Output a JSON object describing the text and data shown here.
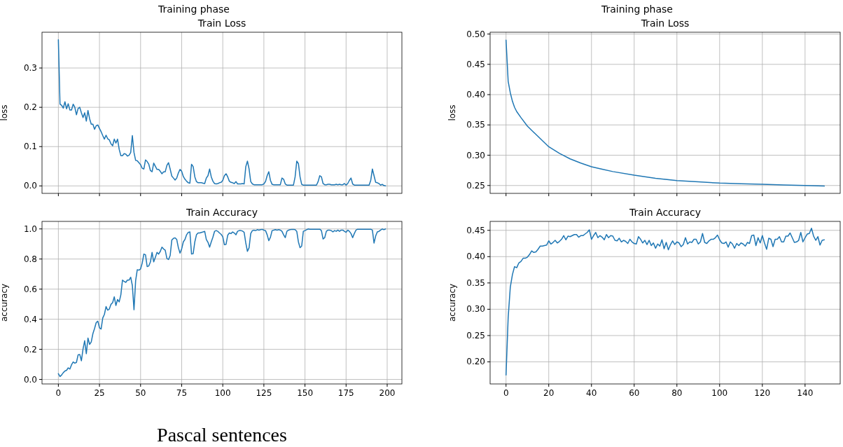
{
  "chart_data": [
    {
      "type": "line",
      "title": "Training phase",
      "subtitle": "Train Loss",
      "ylabel": "loss",
      "xlim": [
        -9.95,
        208.95
      ],
      "xticks": [
        0,
        25,
        50,
        75,
        100,
        125,
        150,
        175,
        200
      ],
      "ylim": [
        -0.019,
        0.391
      ],
      "yticks": [
        {
          "value": 0,
          "label": "0.0"
        },
        0.1,
        0.2,
        0.3
      ],
      "grid": true,
      "tick_labels": "y",
      "series": [
        {
          "color": "#1f77b4",
          "x": [
            0,
            1,
            2,
            3,
            4,
            5,
            6,
            7,
            8,
            9,
            10,
            11,
            12,
            13,
            14,
            15,
            16,
            17,
            18,
            19,
            20,
            21,
            22,
            23,
            24,
            25,
            26,
            27,
            28,
            29,
            30,
            31,
            32,
            33,
            34,
            35,
            36,
            37,
            38,
            39,
            40,
            41,
            42,
            43,
            44,
            45,
            46,
            47,
            48,
            49,
            50,
            51,
            52,
            53,
            54,
            55,
            56,
            57,
            58,
            59,
            60,
            61,
            62,
            63,
            64,
            65,
            66,
            67,
            68,
            69,
            70,
            71,
            72,
            73,
            74,
            75,
            76,
            77,
            78,
            79,
            80,
            81,
            82,
            83,
            84,
            85,
            86,
            87,
            88,
            89,
            90,
            91,
            92,
            93,
            94,
            95,
            96,
            97,
            98,
            99,
            100,
            101,
            102,
            103,
            104,
            105,
            106,
            107,
            108,
            109,
            110,
            111,
            112,
            113,
            114,
            115,
            116,
            117,
            118,
            119,
            120,
            121,
            122,
            123,
            124,
            125,
            126,
            127,
            128,
            129,
            130,
            131,
            132,
            133,
            134,
            135,
            136,
            137,
            138,
            139,
            140,
            141,
            142,
            143,
            144,
            145,
            146,
            147,
            148,
            149,
            150,
            151,
            152,
            153,
            154,
            155,
            156,
            157,
            158,
            159,
            160,
            161,
            162,
            163,
            164,
            165,
            166,
            167,
            168,
            169,
            170,
            171,
            172,
            173,
            174,
            175,
            176,
            177,
            178,
            179,
            180,
            181,
            182,
            183,
            184,
            185,
            186,
            187,
            188,
            189,
            190,
            191,
            192,
            193,
            194,
            195,
            196,
            197,
            198,
            199
          ],
          "values": [
            0.372,
            0.208,
            0.205,
            0.198,
            0.214,
            0.196,
            0.209,
            0.193,
            0.193,
            0.208,
            0.2,
            0.181,
            0.197,
            0.2,
            0.186,
            0.174,
            0.186,
            0.165,
            0.192,
            0.171,
            0.157,
            0.157,
            0.144,
            0.153,
            0.155,
            0.146,
            0.138,
            0.128,
            0.119,
            0.129,
            0.12,
            0.117,
            0.107,
            0.102,
            0.119,
            0.109,
            0.119,
            0.093,
            0.077,
            0.077,
            0.082,
            0.081,
            0.076,
            0.078,
            0.085,
            0.128,
            0.085,
            0.065,
            0.064,
            0.059,
            0.054,
            0.045,
            0.043,
            0.066,
            0.062,
            0.055,
            0.039,
            0.036,
            0.058,
            0.05,
            0.042,
            0.042,
            0.037,
            0.031,
            0.036,
            0.036,
            0.052,
            0.059,
            0.043,
            0.025,
            0.02,
            0.015,
            0.02,
            0.033,
            0.042,
            0.037,
            0.024,
            0.017,
            0.012,
            0.008,
            0.007,
            0.055,
            0.049,
            0.023,
            0.011,
            0.008,
            0.008,
            0.008,
            0.007,
            0.006,
            0.02,
            0.026,
            0.043,
            0.023,
            0.012,
            0.006,
            0.005,
            0.006,
            0.008,
            0.009,
            0.014,
            0.026,
            0.031,
            0.023,
            0.012,
            0.009,
            0.008,
            0.006,
            0.011,
            0.005,
            0.005,
            0.005,
            0.006,
            0.005,
            0.049,
            0.063,
            0.043,
            0.011,
            0.005,
            0.003,
            0.003,
            0.003,
            0.003,
            0.003,
            0.003,
            0.005,
            0.011,
            0.026,
            0.036,
            0.014,
            0.004,
            0.003,
            0.003,
            0.003,
            0.003,
            0.003,
            0.02,
            0.017,
            0.005,
            0.002,
            0.002,
            0.002,
            0.002,
            0.002,
            0.023,
            0.063,
            0.057,
            0.023,
            0.004,
            0.002,
            0.002,
            0.002,
            0.002,
            0.002,
            0.002,
            0.002,
            0.002,
            0.002,
            0.011,
            0.026,
            0.023,
            0.006,
            0.003,
            0.003,
            0.004,
            0.004,
            0.003,
            0.003,
            0.003,
            0.004,
            0.003,
            0.004,
            0.003,
            0.003,
            0.006,
            0.002,
            0.006,
            0.014,
            0.02,
            0.005,
            0.002,
            0.002,
            0.002,
            0.002,
            0.002,
            0.002,
            0.002,
            0.002,
            0.002,
            0.002,
            0.014,
            0.043,
            0.026,
            0.009,
            0.008,
            0.006,
            0.002,
            0.004,
            0.001,
            0
          ]
        }
      ]
    },
    {
      "type": "line",
      "title": "Training phase",
      "subtitle": "Train Loss",
      "ylabel": "loss",
      "xlim": [
        -7.45,
        156.45
      ],
      "xticks": [
        0,
        20,
        40,
        60,
        80,
        100,
        120,
        140
      ],
      "ylim": [
        0.237,
        0.503
      ],
      "yticks": [
        {
          "value": 0.25,
          "label": "0.25"
        },
        {
          "value": 0.3,
          "label": "0.30"
        },
        {
          "value": 0.35,
          "label": "0.35"
        },
        {
          "value": 0.4,
          "label": "0.40"
        },
        {
          "value": 0.45,
          "label": "0.45"
        },
        {
          "value": 0.5,
          "label": "0.50"
        }
      ],
      "grid": true,
      "tick_labels": "y",
      "series": [
        {
          "color": "#1f77b4",
          "x": [
            0,
            1,
            2,
            3,
            4,
            5,
            7,
            10,
            12,
            15,
            20,
            25,
            30,
            35,
            40,
            45,
            50,
            60,
            70,
            80,
            90,
            100,
            110,
            120,
            130,
            140,
            149
          ],
          "values": [
            0.49,
            0.422,
            0.403,
            0.389,
            0.379,
            0.372,
            0.362,
            0.348,
            0.341,
            0.331,
            0.314,
            0.303,
            0.294,
            0.287,
            0.281,
            0.277,
            0.273,
            0.267,
            0.262,
            0.258,
            0.256,
            0.254,
            0.253,
            0.252,
            0.251,
            0.25,
            0.249
          ]
        }
      ]
    },
    {
      "type": "line",
      "title": "Train Accuracy",
      "ylabel": "accuracy",
      "xlim": [
        -9.95,
        208.95
      ],
      "xticks": [
        0,
        25,
        50,
        75,
        100,
        125,
        150,
        175,
        200
      ],
      "ylim": [
        -0.03,
        1.05
      ],
      "yticks": [
        {
          "value": 0,
          "label": "0.0"
        },
        0.2,
        0.4,
        0.6,
        0.8,
        {
          "value": 1,
          "label": "1.0"
        }
      ],
      "grid": true,
      "annotations": [
        "Pascal sentences"
      ],
      "series": [
        {
          "color": "#1f77b4",
          "x": [
            0,
            1,
            2,
            3,
            4,
            5,
            6,
            7,
            8,
            9,
            10,
            11,
            12,
            13,
            14,
            15,
            16,
            17,
            18,
            19,
            20,
            21,
            22,
            23,
            24,
            25,
            26,
            27,
            28,
            29,
            30,
            31,
            32,
            33,
            34,
            35,
            36,
            37,
            38,
            39,
            40,
            41,
            42,
            43,
            44,
            45,
            46,
            47,
            48,
            49,
            50,
            51,
            52,
            53,
            54,
            55,
            56,
            57,
            58,
            59,
            60,
            61,
            62,
            63,
            64,
            65,
            66,
            67,
            68,
            69,
            70,
            71,
            72,
            73,
            74,
            75,
            76,
            77,
            78,
            79,
            80,
            81,
            82,
            83,
            84,
            85,
            86,
            87,
            88,
            89,
            90,
            91,
            92,
            93,
            94,
            95,
            96,
            97,
            98,
            99,
            100,
            101,
            102,
            103,
            104,
            105,
            106,
            107,
            108,
            109,
            110,
            111,
            112,
            113,
            114,
            115,
            116,
            117,
            118,
            119,
            120,
            121,
            122,
            123,
            124,
            125,
            126,
            127,
            128,
            129,
            130,
            131,
            132,
            133,
            134,
            135,
            136,
            137,
            138,
            139,
            140,
            141,
            142,
            143,
            144,
            145,
            146,
            147,
            148,
            149,
            150,
            151,
            152,
            153,
            154,
            155,
            156,
            157,
            158,
            159,
            160,
            161,
            162,
            163,
            164,
            165,
            166,
            167,
            168,
            169,
            170,
            171,
            172,
            173,
            174,
            175,
            176,
            177,
            178,
            179,
            180,
            181,
            182,
            183,
            184,
            185,
            186,
            187,
            188,
            189,
            190,
            191,
            192,
            193,
            194,
            195,
            196,
            197,
            198,
            199
          ],
          "values": [
            0.038,
            0.019,
            0.03,
            0.045,
            0.056,
            0.061,
            0.077,
            0.069,
            0.097,
            0.116,
            0.108,
            0.113,
            0.163,
            0.166,
            0.124,
            0.202,
            0.257,
            0.171,
            0.275,
            0.233,
            0.249,
            0.304,
            0.338,
            0.377,
            0.387,
            0.343,
            0.335,
            0.408,
            0.432,
            0.484,
            0.46,
            0.468,
            0.499,
            0.51,
            0.549,
            0.491,
            0.531,
            0.515,
            0.562,
            0.66,
            0.651,
            0.645,
            0.66,
            0.66,
            0.679,
            0.624,
            0.463,
            0.656,
            0.729,
            0.726,
            0.734,
            0.773,
            0.833,
            0.828,
            0.75,
            0.754,
            0.781,
            0.844,
            0.781,
            0.812,
            0.844,
            0.833,
            0.851,
            0.879,
            0.867,
            0.859,
            0.804,
            0.797,
            0.823,
            0.926,
            0.937,
            0.941,
            0.93,
            0.875,
            0.839,
            0.867,
            0.914,
            0.93,
            0.961,
            0.977,
            0.98,
            0.833,
            0.836,
            0.914,
            0.961,
            0.973,
            0.973,
            0.977,
            0.98,
            0.984,
            0.93,
            0.911,
            0.879,
            0.914,
            0.945,
            0.984,
            0.989,
            0.984,
            0.973,
            0.964,
            0.948,
            0.895,
            0.898,
            0.958,
            0.973,
            0.969,
            0.98,
            0.973,
            0.961,
            0.984,
            0.989,
            0.989,
            0.986,
            0.977,
            0.906,
            0.851,
            0.875,
            0.969,
            0.989,
            0.992,
            0.989,
            0.995,
            0.992,
            0.995,
            0.997,
            0.992,
            0.989,
            0.961,
            0.922,
            0.945,
            0.989,
            0.992,
            0.995,
            0.992,
            0.995,
            0.992,
            0.984,
            0.961,
            0.942,
            0.984,
            0.992,
            0.995,
            0.997,
            0.997,
            0.995,
            0.984,
            0.914,
            0.875,
            0.886,
            0.984,
            0.989,
            0.995,
            1.0,
            0.998,
            0.998,
            0.998,
            0.998,
            0.998,
            0.998,
            0.998,
            0.989,
            0.933,
            0.942,
            0.984,
            0.992,
            0.992,
            0.989,
            0.98,
            0.989,
            0.984,
            0.992,
            0.984,
            0.992,
            0.992,
            0.984,
            0.977,
            0.992,
            0.984,
            0.969,
            0.942,
            0.969,
            0.992,
            0.998,
            0.998,
            0.998,
            0.998,
            0.998,
            0.998,
            0.998,
            0.998,
            0.998,
            0.992,
            0.906,
            0.953,
            0.98,
            0.984,
            0.992,
            1.0,
            0.995,
            1.0
          ]
        }
      ]
    },
    {
      "type": "line",
      "title": "Train Accuracy",
      "ylabel": "accuracy",
      "xlim": [
        -7.45,
        156.45
      ],
      "xticks": [
        0,
        20,
        40,
        60,
        80,
        100,
        120,
        140
      ],
      "ylim": [
        0.158,
        0.467
      ],
      "yticks": [
        {
          "value": 0.2,
          "label": "0.20"
        },
        0.25,
        {
          "value": 0.3,
          "label": "0.30"
        },
        0.35,
        {
          "value": 0.4,
          "label": "0.40"
        },
        0.45
      ],
      "grid": true,
      "series": [
        {
          "color": "#1f77b4",
          "x": [
            0,
            1,
            2,
            3,
            4,
            5,
            6,
            7,
            8,
            9,
            10,
            11,
            12,
            13,
            14,
            15,
            16,
            17,
            18,
            19,
            20,
            21,
            22,
            23,
            24,
            25,
            26,
            27,
            28,
            29,
            30,
            31,
            32,
            33,
            34,
            35,
            36,
            37,
            38,
            39,
            40,
            41,
            42,
            43,
            44,
            45,
            46,
            47,
            48,
            49,
            50,
            51,
            52,
            53,
            54,
            55,
            56,
            57,
            58,
            59,
            60,
            61,
            62,
            63,
            64,
            65,
            66,
            67,
            68,
            69,
            70,
            71,
            72,
            73,
            74,
            75,
            76,
            77,
            78,
            79,
            80,
            81,
            82,
            83,
            84,
            85,
            86,
            87,
            88,
            89,
            90,
            91,
            92,
            93,
            94,
            95,
            96,
            97,
            98,
            99,
            100,
            101,
            102,
            103,
            104,
            105,
            106,
            107,
            108,
            109,
            110,
            111,
            112,
            113,
            114,
            115,
            116,
            117,
            118,
            119,
            120,
            121,
            122,
            123,
            124,
            125,
            126,
            127,
            128,
            129,
            130,
            131,
            132,
            133,
            134,
            135,
            136,
            137,
            138,
            139,
            140,
            141,
            142,
            143,
            144,
            145,
            146,
            147,
            148,
            149
          ],
          "values": [
            0.175,
            0.284,
            0.342,
            0.366,
            0.381,
            0.379,
            0.388,
            0.391,
            0.397,
            0.397,
            0.399,
            0.404,
            0.411,
            0.408,
            0.409,
            0.414,
            0.42,
            0.42,
            0.421,
            0.422,
            0.43,
            0.424,
            0.427,
            0.431,
            0.426,
            0.429,
            0.433,
            0.44,
            0.432,
            0.439,
            0.438,
            0.44,
            0.442,
            0.442,
            0.437,
            0.44,
            0.44,
            0.443,
            0.446,
            0.451,
            0.433,
            0.44,
            0.446,
            0.436,
            0.44,
            0.437,
            0.432,
            0.442,
            0.436,
            0.44,
            0.439,
            0.431,
            0.43,
            0.435,
            0.428,
            0.431,
            0.429,
            0.425,
            0.433,
            0.428,
            0.425,
            0.424,
            0.438,
            0.433,
            0.426,
            0.431,
            0.423,
            0.431,
            0.421,
            0.426,
            0.416,
            0.424,
            0.42,
            0.432,
            0.415,
            0.427,
            0.413,
            0.423,
            0.43,
            0.423,
            0.428,
            0.426,
            0.419,
            0.423,
            0.436,
            0.424,
            0.428,
            0.427,
            0.433,
            0.433,
            0.424,
            0.428,
            0.444,
            0.427,
            0.425,
            0.43,
            0.433,
            0.433,
            0.436,
            0.441,
            0.432,
            0.426,
            0.425,
            0.428,
            0.418,
            0.428,
            0.424,
            0.416,
            0.425,
            0.421,
            0.426,
            0.424,
            0.42,
            0.427,
            0.425,
            0.44,
            0.441,
            0.421,
            0.436,
            0.426,
            0.44,
            0.426,
            0.414,
            0.435,
            0.433,
            0.419,
            0.433,
            0.433,
            0.438,
            0.428,
            0.428,
            0.439,
            0.439,
            0.445,
            0.436,
            0.427,
            0.428,
            0.431,
            0.446,
            0.428,
            0.436,
            0.443,
            0.444,
            0.454,
            0.439,
            0.431,
            0.438,
            0.422,
            0.431,
            0.432
          ]
        }
      ]
    }
  ]
}
